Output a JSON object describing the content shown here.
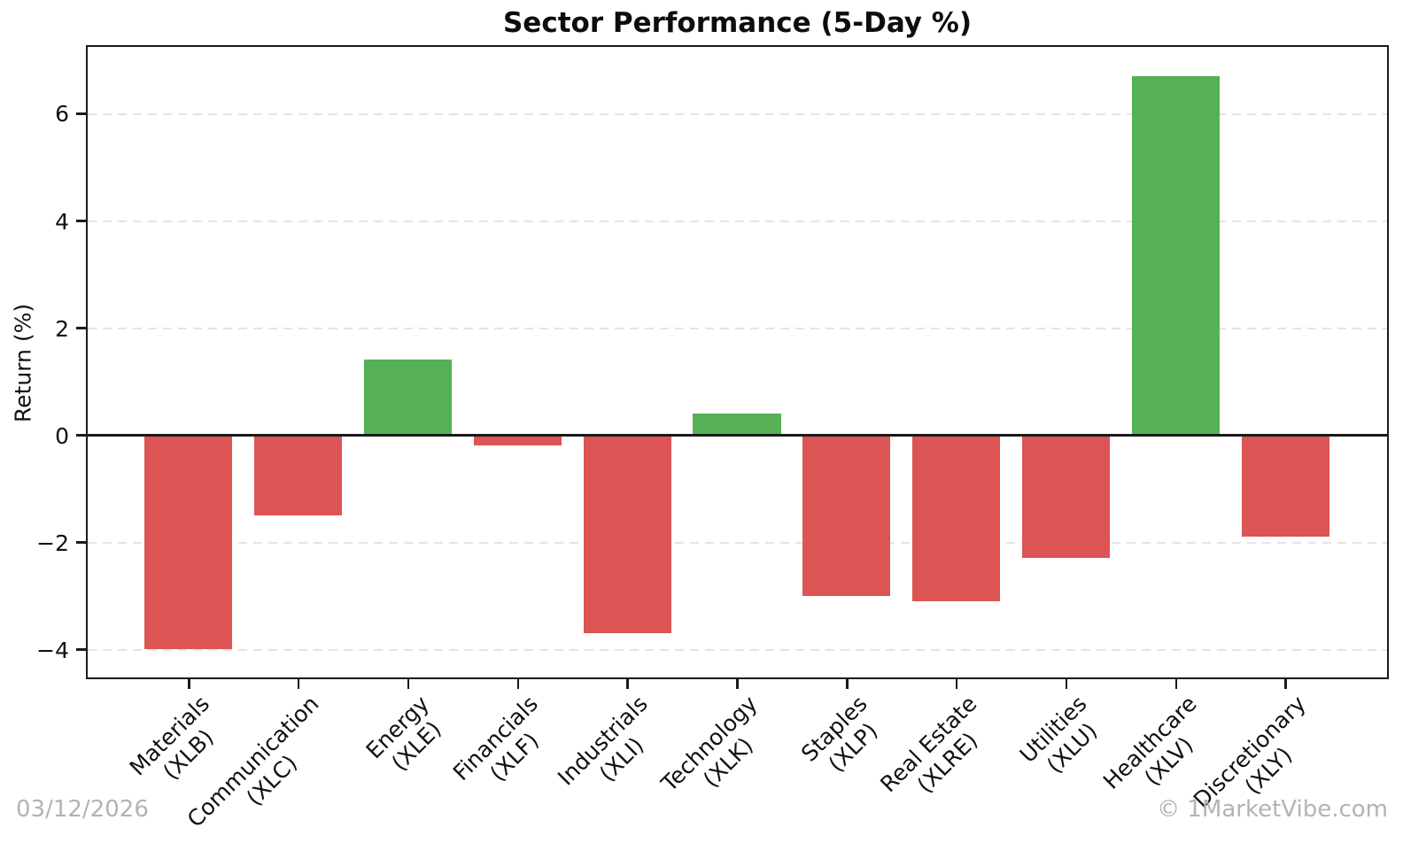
{
  "title": "Sector Performance (5-Day %)",
  "footer": {
    "date": "03/12/2026",
    "watermark": "© 1MarketVibe.com",
    "text_color": "#b3b3b3"
  },
  "chart_data": {
    "type": "bar",
    "title": "Sector Performance (5-Day %)",
    "xlabel": "",
    "ylabel": "Return (%)",
    "categories": [
      "Materials\n(XLB)",
      "Communication\n(XLC)",
      "Energy\n(XLE)",
      "Financials\n(XLF)",
      "Industrials\n(XLI)",
      "Technology\n(XLK)",
      "Staples\n(XLP)",
      "Real Estate\n(XLRE)",
      "Utilities\n(XLU)",
      "Healthcare\n(XLV)",
      "Discretionary\n(XLY)"
    ],
    "values": [
      -4.0,
      -1.5,
      1.4,
      -0.2,
      -3.7,
      0.4,
      -3.0,
      -3.1,
      -2.3,
      6.7,
      -1.9
    ],
    "bar_colors": {
      "positive": "#55b056",
      "negative": "#dc5454"
    },
    "ylim": [
      -4.55,
      7.28
    ],
    "xlim_units": [
      -0.94,
      10.94
    ],
    "yticks": [
      6,
      4,
      2,
      0,
      -2,
      -4
    ],
    "ytick_labels": [
      "6",
      "4",
      "2",
      "0",
      "−2",
      "−4"
    ],
    "bar_width_fraction": 0.8,
    "grid": {
      "axis": "y",
      "style": "dashed",
      "color": "#e4e4e4"
    },
    "zero_line": true,
    "legend": null,
    "tick_label_rotation_deg": 45,
    "background": "#ffffff"
  }
}
